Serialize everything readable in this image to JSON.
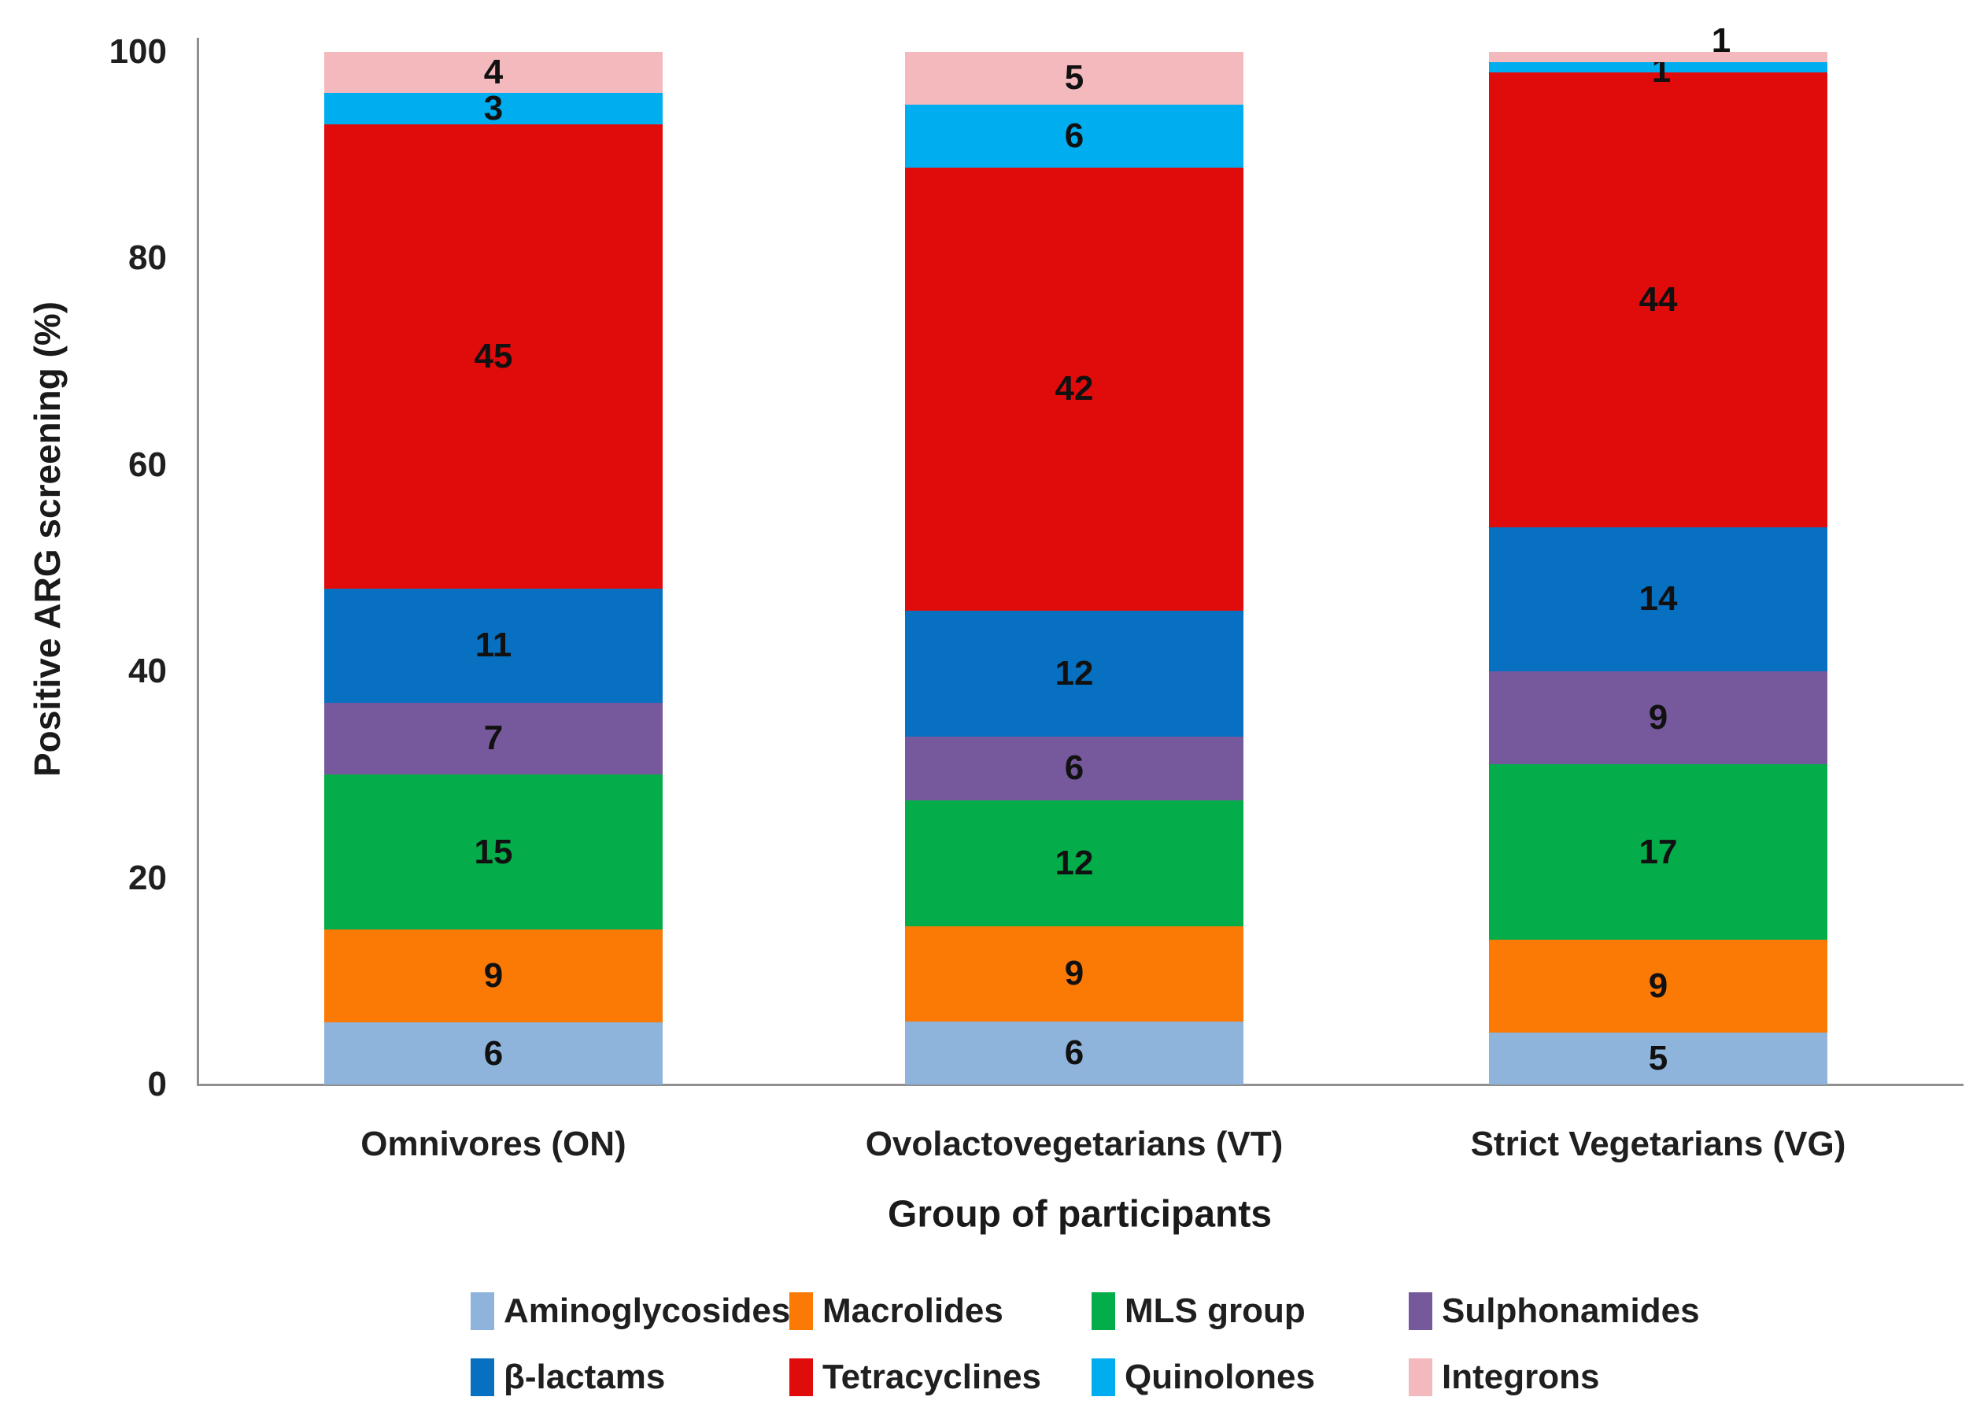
{
  "chart_data": {
    "type": "bar",
    "stacked": true,
    "normalized_to_100_percent": true,
    "title": "",
    "xlabel": "Group of participants",
    "ylabel": "Positive ARG screening (%)",
    "ylim": [
      0,
      100
    ],
    "yticks": [
      0,
      20,
      40,
      60,
      80,
      100
    ],
    "grid": false,
    "legend_position": "bottom",
    "categories": [
      "Omnivores (ON)",
      "Ovolactovegetarians (VT)",
      "Strict Vegetarians  (VG)"
    ],
    "series": [
      {
        "name": "Aminoglycosides",
        "color": "#8EB4DB",
        "values": [
          6,
          6,
          5
        ]
      },
      {
        "name": "Macrolides",
        "color": "#FB7905",
        "values": [
          9,
          9,
          9
        ]
      },
      {
        "name": "MLS group",
        "color": "#04AD4A",
        "values": [
          15,
          12,
          17
        ]
      },
      {
        "name": "Sulphonamides",
        "color": "#76599C",
        "values": [
          7,
          6,
          9
        ]
      },
      {
        "name": "β-lactams",
        "color": "#0870C0",
        "values": [
          11,
          12,
          14
        ]
      },
      {
        "name": "Tetracyclines",
        "color": "#E00C0C",
        "values": [
          45,
          42,
          44
        ]
      },
      {
        "name": "Quinolones",
        "color": "#00AEEF",
        "values": [
          3,
          6,
          1
        ]
      },
      {
        "name": "Integrons",
        "color": "#F3B9BD",
        "values": [
          4,
          5,
          1
        ]
      }
    ],
    "axis_color": "#8f8f8f"
  }
}
